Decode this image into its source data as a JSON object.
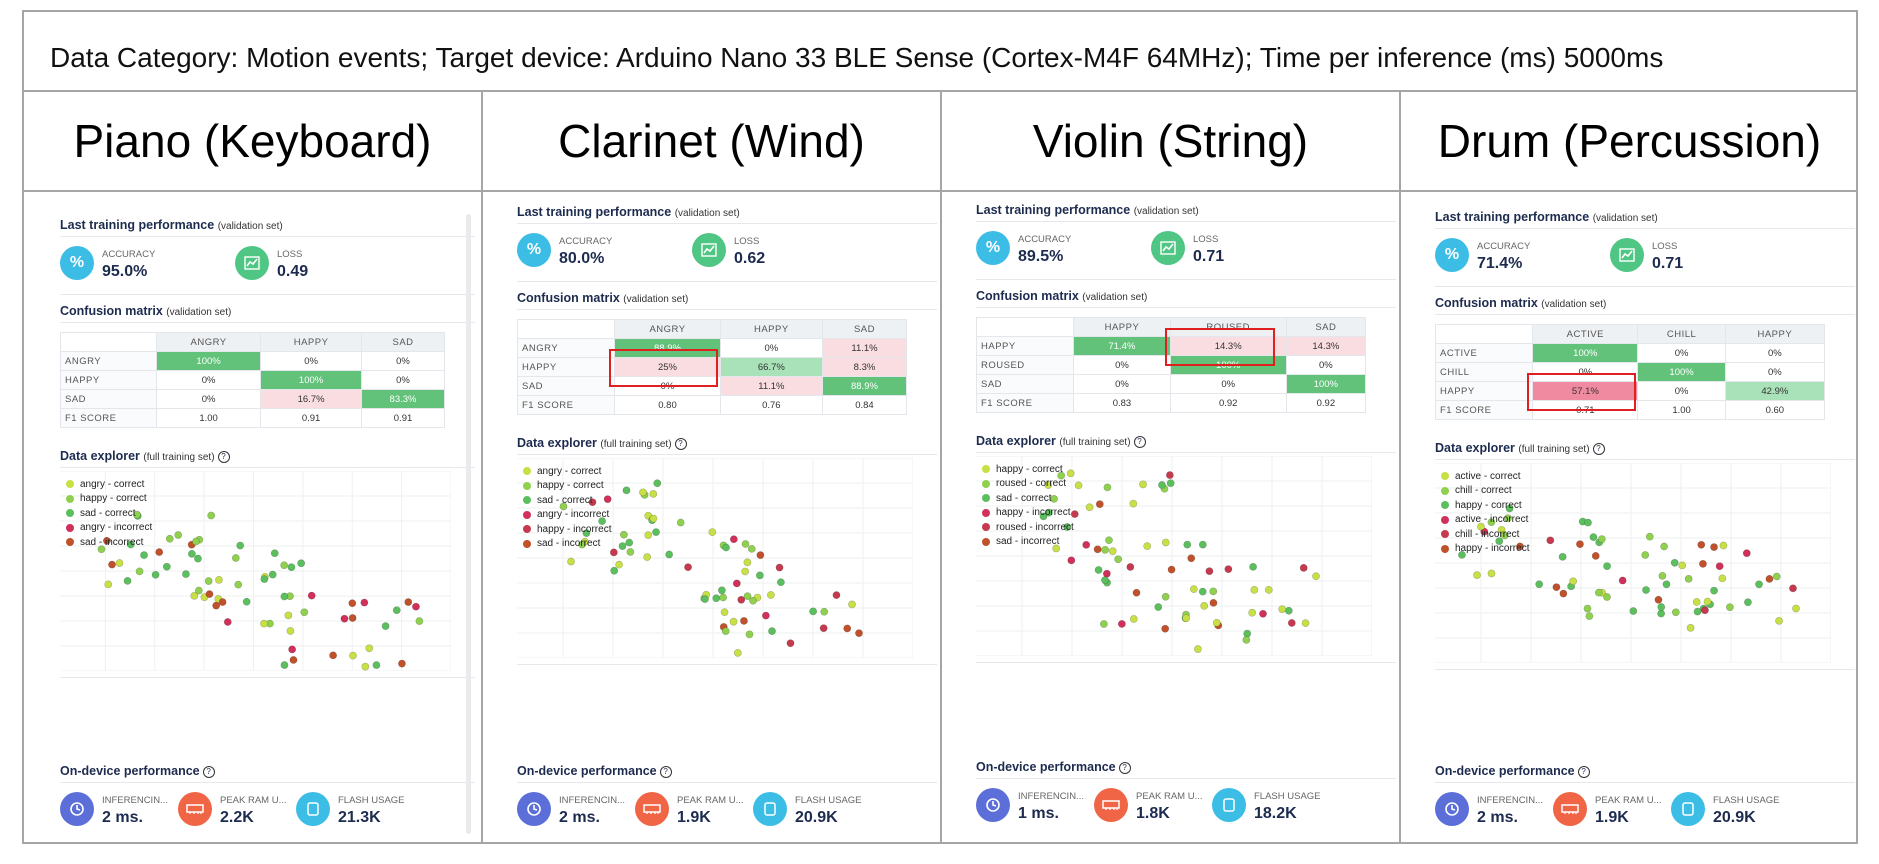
{
  "header": {
    "text": "Data Category: Motion events; Target device: Arduino Nano 33 BLE Sense (Cortex-M4F 64MHz); Time per inference (ms) 5000ms"
  },
  "labels": {
    "training": "Last training performance",
    "validation_set": "(validation set)",
    "accuracy": "ACCURACY",
    "loss": "LOSS",
    "confusion": "Confusion matrix",
    "explorer": "Data explorer",
    "full_training_set": "(full training set)",
    "on_device": "On-device performance",
    "inferencing": "INFERENCIN...",
    "peak_ram": "PEAK RAM U...",
    "flash": "FLASH USAGE",
    "f1": "F1 SCORE",
    "percent_icon": "%",
    "help_icon": "?"
  },
  "icons": {
    "accuracy": "percent-icon",
    "loss": "line-chart-icon",
    "inferencing": "clock-icon",
    "ram": "memory-chip-icon",
    "flash": "cpu-chip-icon",
    "help": "help-circle-icon"
  },
  "colors": {
    "correct_green": "#5cbf5e",
    "correct_yellow": "#c8e045",
    "incorrect_red": "#d0305a",
    "incorrect_brown": "#c0512b",
    "cell_green": "#62c27a",
    "cell_light_green": "#a9e2b8",
    "cell_pink": "#f9dde1",
    "cell_red": "#f08aa0",
    "accuracy_icon": "#3bbde6",
    "loss_icon": "#4fc684",
    "clock_icon": "#5c6fd8",
    "ram_icon": "#f06545",
    "flash_icon": "#3bbde6"
  },
  "columns": [
    {
      "title": "Piano (Keyboard)",
      "accuracy": "95.0%",
      "loss": "0.49",
      "matrix": {
        "headers": [
          "ANGRY",
          "HAPPY",
          "SAD"
        ],
        "rows": [
          {
            "label": "ANGRY",
            "cells": [
              "100%",
              "0%",
              "0%"
            ],
            "styles": [
              "g",
              "",
              ""
            ]
          },
          {
            "label": "HAPPY",
            "cells": [
              "0%",
              "100%",
              "0%"
            ],
            "styles": [
              "",
              "g",
              ""
            ]
          },
          {
            "label": "SAD",
            "cells": [
              "0%",
              "16.7%",
              "83.3%"
            ],
            "styles": [
              "",
              "p",
              "g"
            ]
          }
        ],
        "f1": [
          "1.00",
          "0.91",
          "0.91"
        ]
      },
      "legend": [
        {
          "text": "angry - correct",
          "color": "#c8e045"
        },
        {
          "text": "happy - correct",
          "color": "#8fd14f"
        },
        {
          "text": "sad - correct",
          "color": "#5cbf5e"
        },
        {
          "text": "angry - incorrect",
          "color": "#d0305a"
        },
        {
          "text": "sad - incorrect",
          "color": "#c0512b"
        }
      ],
      "inferencing": "2 ms.",
      "peak_ram": "2.2K",
      "flash": "21.3K"
    },
    {
      "title": "Clarinet (Wind)",
      "accuracy": "80.0%",
      "loss": "0.62",
      "matrix": {
        "headers": [
          "ANGRY",
          "HAPPY",
          "SAD"
        ],
        "rows": [
          {
            "label": "ANGRY",
            "cells": [
              "88.9%",
              "0%",
              "11.1%"
            ],
            "styles": [
              "g",
              "",
              "p"
            ]
          },
          {
            "label": "HAPPY",
            "cells": [
              "25%",
              "66.7%",
              "8.3%"
            ],
            "styles": [
              "p",
              "lg",
              "p"
            ]
          },
          {
            "label": "SAD",
            "cells": [
              "0%",
              "11.1%",
              "88.9%"
            ],
            "styles": [
              "",
              "p",
              "g"
            ]
          }
        ],
        "f1": [
          "0.80",
          "0.76",
          "0.84"
        ]
      },
      "legend": [
        {
          "text": "angry - correct",
          "color": "#c8e045"
        },
        {
          "text": "happy - correct",
          "color": "#8fd14f"
        },
        {
          "text": "sad - correct",
          "color": "#5cbf5e"
        },
        {
          "text": "angry - incorrect",
          "color": "#d0305a"
        },
        {
          "text": "happy - incorrect",
          "color": "#c63a4f"
        },
        {
          "text": "sad - incorrect",
          "color": "#c0512b"
        }
      ],
      "inferencing": "2 ms.",
      "peak_ram": "1.9K",
      "flash": "20.9K"
    },
    {
      "title": "Violin (String)",
      "accuracy": "89.5%",
      "loss": "0.71",
      "matrix": {
        "headers": [
          "HAPPY",
          "ROUSED",
          "SAD"
        ],
        "rows": [
          {
            "label": "HAPPY",
            "cells": [
              "71.4%",
              "14.3%",
              "14.3%"
            ],
            "styles": [
              "g",
              "p",
              "p"
            ]
          },
          {
            "label": "ROUSED",
            "cells": [
              "0%",
              "100%",
              "0%"
            ],
            "styles": [
              "",
              "g",
              ""
            ]
          },
          {
            "label": "SAD",
            "cells": [
              "0%",
              "0%",
              "100%"
            ],
            "styles": [
              "",
              "",
              "g"
            ]
          }
        ],
        "f1": [
          "0.83",
          "0.92",
          "0.92"
        ]
      },
      "legend": [
        {
          "text": "happy - correct",
          "color": "#c8e045"
        },
        {
          "text": "roused - correct",
          "color": "#8fd14f"
        },
        {
          "text": "sad - correct",
          "color": "#5cbf5e"
        },
        {
          "text": "happy - incorrect",
          "color": "#d0305a"
        },
        {
          "text": "roused - incorrect",
          "color": "#c63a4f"
        },
        {
          "text": "sad - incorrect",
          "color": "#c0512b"
        }
      ],
      "inferencing": "1 ms.",
      "peak_ram": "1.8K",
      "flash": "18.2K"
    },
    {
      "title": "Drum (Percussion)",
      "accuracy": "71.4%",
      "loss": "0.71",
      "matrix": {
        "headers": [
          "ACTIVE",
          "CHILL",
          "HAPPY"
        ],
        "rows": [
          {
            "label": "ACTIVE",
            "cells": [
              "100%",
              "0%",
              "0%"
            ],
            "styles": [
              "g",
              "",
              ""
            ]
          },
          {
            "label": "CHILL",
            "cells": [
              "0%",
              "100%",
              "0%"
            ],
            "styles": [
              "",
              "g",
              ""
            ]
          },
          {
            "label": "HAPPY",
            "cells": [
              "57.1%",
              "0%",
              "42.9%"
            ],
            "styles": [
              "r",
              "",
              "lg"
            ]
          }
        ],
        "f1": [
          "0.71",
          "1.00",
          "0.60"
        ]
      },
      "legend": [
        {
          "text": "active - correct",
          "color": "#c8e045"
        },
        {
          "text": "chill - correct",
          "color": "#8fd14f"
        },
        {
          "text": "happy - correct",
          "color": "#5cbf5e"
        },
        {
          "text": "active - incorrect",
          "color": "#d0305a"
        },
        {
          "text": "chill - incorrect",
          "color": "#c63a4f"
        },
        {
          "text": "happy - incorrect",
          "color": "#c0512b"
        }
      ],
      "inferencing": "2 ms.",
      "peak_ram": "1.9K",
      "flash": "20.9K"
    }
  ]
}
